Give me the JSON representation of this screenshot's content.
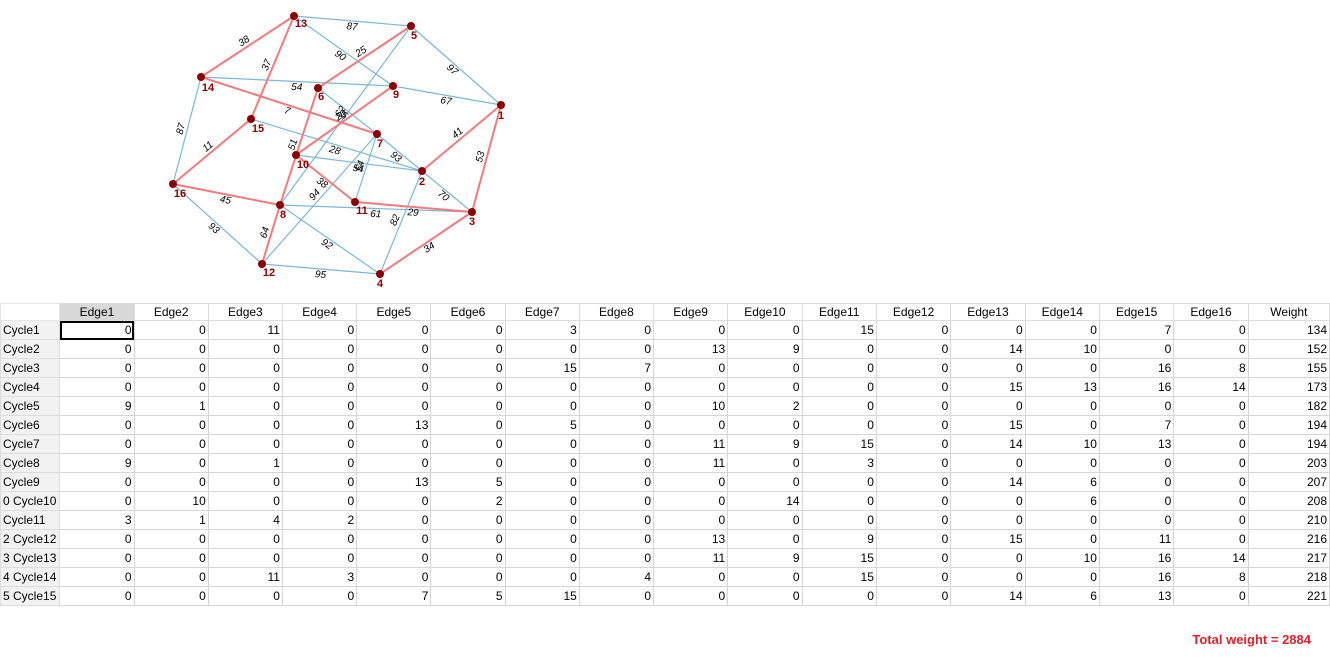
{
  "graph": {
    "nodes": [
      {
        "id": "1",
        "label": "1"
      },
      {
        "id": "2",
        "label": "2"
      },
      {
        "id": "3",
        "label": "3"
      },
      {
        "id": "4",
        "label": "4"
      },
      {
        "id": "5",
        "label": "5"
      },
      {
        "id": "6",
        "label": "6"
      },
      {
        "id": "7",
        "label": "7"
      },
      {
        "id": "8",
        "label": "8"
      },
      {
        "id": "9",
        "label": "9"
      },
      {
        "id": "10",
        "label": "10"
      },
      {
        "id": "11",
        "label": "11"
      },
      {
        "id": "12",
        "label": "12"
      },
      {
        "id": "13",
        "label": "13"
      },
      {
        "id": "14",
        "label": "14"
      },
      {
        "id": "15",
        "label": "15"
      },
      {
        "id": "16",
        "label": "16"
      }
    ],
    "edges": [
      {
        "a": "13",
        "b": "9",
        "w": "90",
        "hl": false
      },
      {
        "a": "13",
        "b": "5",
        "w": "87",
        "hl": false
      },
      {
        "a": "13",
        "b": "14",
        "w": "38",
        "hl": true
      },
      {
        "a": "13",
        "b": "15",
        "w": "37",
        "hl": true
      },
      {
        "a": "5",
        "b": "6",
        "w": "25",
        "hl": true
      },
      {
        "a": "5",
        "b": "1",
        "w": "97",
        "hl": false
      },
      {
        "a": "5",
        "b": "8",
        "w": "62",
        "hl": false
      },
      {
        "a": "14",
        "b": "9",
        "w": "54",
        "hl": false
      },
      {
        "a": "14",
        "b": "16",
        "w": "87",
        "hl": false
      },
      {
        "a": "14",
        "b": "7",
        "w": "7",
        "hl": true
      },
      {
        "a": "9",
        "b": "1",
        "w": "67",
        "hl": false
      },
      {
        "a": "9",
        "b": "10",
        "w": "20",
        "hl": true
      },
      {
        "a": "6",
        "b": "7",
        "w": "5",
        "hl": false
      },
      {
        "a": "6",
        "b": "8",
        "w": "51",
        "hl": true
      },
      {
        "a": "15",
        "b": "16",
        "w": "11",
        "hl": true
      },
      {
        "a": "15",
        "b": "2",
        "w": "28",
        "hl": false
      },
      {
        "a": "7",
        "b": "2",
        "w": "93",
        "hl": false
      },
      {
        "a": "7",
        "b": "11",
        "w": "54",
        "hl": false
      },
      {
        "a": "7",
        "b": "12",
        "w": "94",
        "hl": false
      },
      {
        "a": "10",
        "b": "2",
        "w": "54",
        "hl": false
      },
      {
        "a": "10",
        "b": "11",
        "w": "38",
        "hl": true
      },
      {
        "a": "1",
        "b": "2",
        "w": "41",
        "hl": true
      },
      {
        "a": "1",
        "b": "3",
        "w": "53",
        "hl": true
      },
      {
        "a": "2",
        "b": "3",
        "w": "70",
        "hl": false
      },
      {
        "a": "2",
        "b": "4",
        "w": "82",
        "hl": false
      },
      {
        "a": "16",
        "b": "8",
        "w": "45",
        "hl": true
      },
      {
        "a": "16",
        "b": "12",
        "w": "93",
        "hl": false
      },
      {
        "a": "8",
        "b": "4",
        "w": "92",
        "hl": false
      },
      {
        "a": "8",
        "b": "3",
        "w": "61",
        "hl": false
      },
      {
        "a": "8",
        "b": "12",
        "w": "64",
        "hl": true
      },
      {
        "a": "11",
        "b": "3",
        "w": "29",
        "hl": true
      },
      {
        "a": "12",
        "b": "4",
        "w": "95",
        "hl": false
      },
      {
        "a": "4",
        "b": "3",
        "w": "34",
        "hl": true
      }
    ],
    "colors": {
      "edge": "#7bb7d9",
      "highlight": "#f27a7e",
      "node": "#8b0000"
    }
  },
  "table": {
    "columns": [
      "Edge1",
      "Edge2",
      "Edge3",
      "Edge4",
      "Edge5",
      "Edge6",
      "Edge7",
      "Edge8",
      "Edge9",
      "Edge10",
      "Edge11",
      "Edge12",
      "Edge13",
      "Edge14",
      "Edge15",
      "Edge16",
      "Weight"
    ],
    "rows": [
      {
        "label": "Cycle1",
        "values": [
          0,
          0,
          11,
          0,
          0,
          0,
          3,
          0,
          0,
          0,
          15,
          0,
          0,
          0,
          7,
          0,
          134
        ]
      },
      {
        "label": "Cycle2",
        "values": [
          0,
          0,
          0,
          0,
          0,
          0,
          0,
          0,
          13,
          9,
          0,
          0,
          14,
          10,
          0,
          0,
          152
        ]
      },
      {
        "label": "Cycle3",
        "values": [
          0,
          0,
          0,
          0,
          0,
          0,
          15,
          7,
          0,
          0,
          0,
          0,
          0,
          0,
          16,
          8,
          155
        ]
      },
      {
        "label": "Cycle4",
        "values": [
          0,
          0,
          0,
          0,
          0,
          0,
          0,
          0,
          0,
          0,
          0,
          0,
          15,
          13,
          16,
          14,
          173
        ]
      },
      {
        "label": "Cycle5",
        "values": [
          9,
          1,
          0,
          0,
          0,
          0,
          0,
          0,
          10,
          2,
          0,
          0,
          0,
          0,
          0,
          0,
          182
        ]
      },
      {
        "label": "Cycle6",
        "values": [
          0,
          0,
          0,
          0,
          13,
          0,
          5,
          0,
          0,
          0,
          0,
          0,
          15,
          0,
          7,
          0,
          194
        ]
      },
      {
        "label": "Cycle7",
        "values": [
          0,
          0,
          0,
          0,
          0,
          0,
          0,
          0,
          11,
          9,
          15,
          0,
          14,
          10,
          13,
          0,
          194
        ]
      },
      {
        "label": "Cycle8",
        "values": [
          9,
          0,
          1,
          0,
          0,
          0,
          0,
          0,
          11,
          0,
          3,
          0,
          0,
          0,
          0,
          0,
          203
        ]
      },
      {
        "label": "Cycle9",
        "values": [
          0,
          0,
          0,
          0,
          13,
          5,
          0,
          0,
          0,
          0,
          0,
          0,
          14,
          6,
          0,
          0,
          207
        ]
      },
      {
        "label": "0 Cycle10",
        "values": [
          0,
          10,
          0,
          0,
          0,
          2,
          0,
          0,
          0,
          14,
          0,
          0,
          0,
          6,
          0,
          0,
          208
        ]
      },
      {
        "label": "Cycle11",
        "values": [
          3,
          1,
          4,
          2,
          0,
          0,
          0,
          0,
          0,
          0,
          0,
          0,
          0,
          0,
          0,
          0,
          210
        ]
      },
      {
        "label": "2 Cycle12",
        "values": [
          0,
          0,
          0,
          0,
          0,
          0,
          0,
          0,
          13,
          0,
          9,
          0,
          15,
          0,
          11,
          0,
          216
        ]
      },
      {
        "label": "3 Cycle13",
        "values": [
          0,
          0,
          0,
          0,
          0,
          0,
          0,
          0,
          11,
          9,
          15,
          0,
          0,
          10,
          16,
          14,
          217
        ]
      },
      {
        "label": "4 Cycle14",
        "values": [
          0,
          0,
          11,
          3,
          0,
          0,
          0,
          4,
          0,
          0,
          15,
          0,
          0,
          0,
          16,
          8,
          218
        ]
      },
      {
        "label": "5 Cycle15",
        "values": [
          0,
          0,
          0,
          0,
          7,
          5,
          15,
          0,
          0,
          0,
          0,
          0,
          14,
          6,
          13,
          0,
          221
        ]
      }
    ]
  },
  "total": {
    "text": "Total weight = 2884"
  }
}
